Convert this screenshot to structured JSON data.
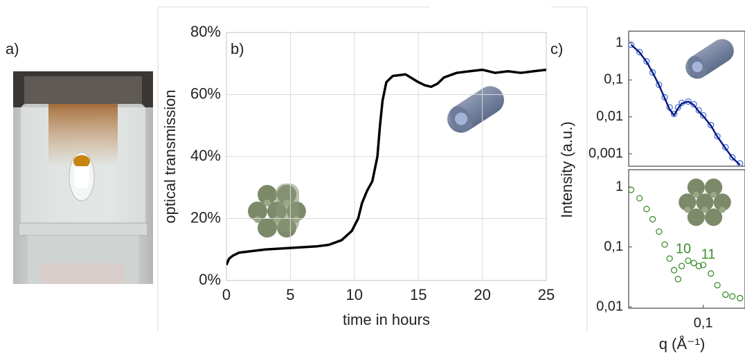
{
  "panel_a": {
    "label": "a)"
  },
  "chart_data": [
    {
      "type": "line",
      "panel_label": "b)",
      "xlabel": "time in hours",
      "ylabel": "optical transmission",
      "x": [
        0,
        0.2,
        0.5,
        1,
        2,
        3,
        5,
        7,
        8,
        9,
        9.8,
        10.3,
        10.6,
        11,
        11.4,
        11.8,
        12,
        12.2,
        12.5,
        13,
        14,
        15,
        15.5,
        16,
        16.5,
        17,
        18,
        19,
        20,
        21,
        22,
        23,
        24,
        25
      ],
      "series": [
        {
          "color": "#000000",
          "values": [
            5,
            7,
            8,
            9,
            9.5,
            10,
            10.5,
            11,
            11.5,
            13,
            16,
            20,
            25,
            29,
            32,
            40,
            50,
            58,
            64,
            66,
            66.5,
            64,
            63,
            62.5,
            63.5,
            65.5,
            67,
            67.5,
            68,
            67,
            67.5,
            67,
            67.5,
            68
          ]
        }
      ],
      "xlim": [
        0,
        25
      ],
      "ylim": [
        0,
        80
      ],
      "xticks": [
        0,
        5,
        10,
        15,
        20,
        25
      ],
      "yticks": [
        {
          "value": 0,
          "label": "0%"
        },
        {
          "value": 20,
          "label": "20%"
        },
        {
          "value": 40,
          "label": "40%"
        },
        {
          "value": 60,
          "label": "60%"
        },
        {
          "value": 80,
          "label": "80%"
        }
      ],
      "grid": true
    },
    {
      "type": "scatter",
      "panel_label": "c)",
      "xlog": true,
      "ylog": true,
      "x": [
        0.018,
        0.022,
        0.026,
        0.03,
        0.035,
        0.04,
        0.045,
        0.05,
        0.055,
        0.06,
        0.07,
        0.08,
        0.09,
        0.1,
        0.12,
        0.14,
        0.17,
        0.2,
        0.24
      ],
      "series": [
        {
          "color": "#4a72d0",
          "marker": "circle",
          "values": [
            0.9,
            0.57,
            0.32,
            0.16,
            0.074,
            0.034,
            0.018,
            0.012,
            0.018,
            0.024,
            0.026,
            0.022,
            0.015,
            0.011,
            0.006,
            0.003,
            0.0015,
            0.0008,
            0.00055
          ]
        },
        {
          "color": "#0b1a85",
          "marker": "line",
          "values": [
            0.9,
            0.56,
            0.31,
            0.16,
            0.072,
            0.032,
            0.016,
            0.011,
            0.017,
            0.023,
            0.026,
            0.021,
            0.014,
            0.0105,
            0.0058,
            0.0029,
            0.0014,
            0.00078,
            0.0005
          ]
        }
      ],
      "xlim": [
        0.017,
        0.27
      ],
      "ylim": [
        0.00046,
        2.1
      ],
      "yticks": [
        1,
        {
          "value": 0.1,
          "label": "0,1"
        },
        {
          "value": 0.01,
          "label": "0,01"
        },
        {
          "value": 0.001,
          "label": "0,001"
        }
      ]
    },
    {
      "type": "scatter",
      "xlog": true,
      "ylog": true,
      "xlabel": "q (Å⁻¹)",
      "ylabel": "Intensity (a.u.)",
      "annotations": [
        "10",
        "11"
      ],
      "x": [
        0.018,
        0.022,
        0.026,
        0.03,
        0.035,
        0.04,
        0.045,
        0.05,
        0.055,
        0.06,
        0.07,
        0.08,
        0.09,
        0.1,
        0.12,
        0.14,
        0.17,
        0.2,
        0.24
      ],
      "series": [
        {
          "color": "#3c8f2c",
          "marker": "circle",
          "values": [
            0.9,
            0.65,
            0.43,
            0.29,
            0.18,
            0.11,
            0.064,
            0.041,
            0.029,
            0.048,
            0.059,
            0.054,
            0.048,
            0.05,
            0.036,
            0.023,
            0.016,
            0.015,
            0.014
          ]
        }
      ],
      "xlim": [
        0.017,
        0.27
      ],
      "ylim": [
        0.0095,
        1.95
      ],
      "xticks": [
        {
          "value": 0.1,
          "label": "0,1"
        }
      ],
      "yticks": [
        1,
        {
          "value": 0.1,
          "label": "0,1"
        },
        {
          "value": 0.01,
          "label": "0,01"
        }
      ]
    }
  ]
}
